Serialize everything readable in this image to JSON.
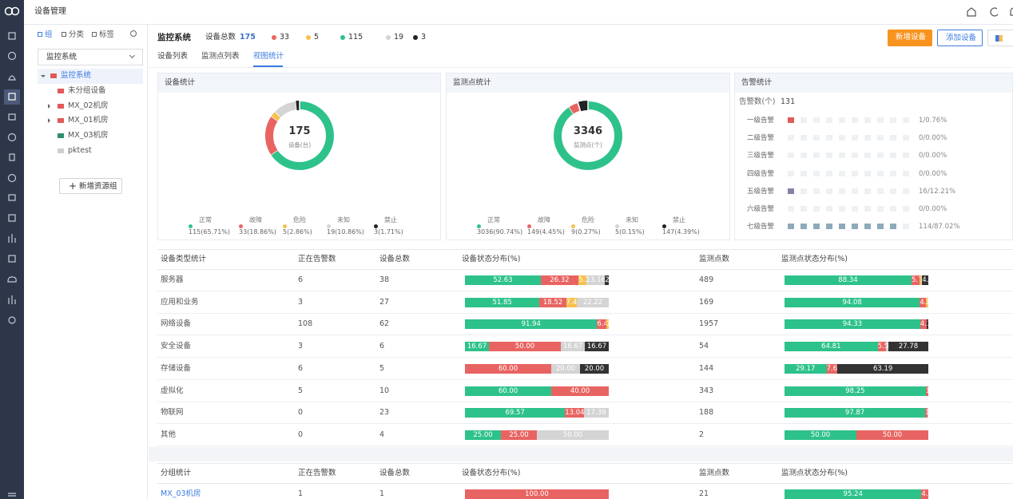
{
  "app": {
    "title": "设备管理"
  },
  "tree": {
    "tabs": [
      "组",
      "分类",
      "标签"
    ],
    "select": "监控系统",
    "nodes": [
      "监控系统",
      "未分组设备",
      "MX_02机房",
      "MX_01机房",
      "MX_03机房",
      "pktest"
    ],
    "node_colors": [
      "#e05a5a",
      "#e05a5a",
      "#e05a5a",
      "#e05a5a",
      "#2e8f6d",
      "#cfcfcf"
    ],
    "button": "新增资源组"
  },
  "header": {
    "title": "监控系统",
    "total_label": "设备总数",
    "total": 175,
    "status_counts": [
      33,
      5,
      115,
      19,
      3
    ],
    "status_colors": [
      "#e86462",
      "#f5c14f",
      "#2ec28b",
      "#d4d4d4",
      "#222222"
    ],
    "buttons": [
      "新增设备",
      "添加设备"
    ]
  },
  "tabs": [
    "设备列表",
    "监测点列表",
    "视图统计"
  ],
  "chart_data": [
    {
      "type": "donut",
      "title": "设备统计",
      "total": 175,
      "total_label": "设备(台)",
      "categories": [
        "正常",
        "故障",
        "危险",
        "未知",
        "禁止"
      ],
      "colors": [
        "#2ec28b",
        "#e86462",
        "#f5c14f",
        "#d4d4d4",
        "#222222"
      ],
      "values": [
        115,
        33,
        5,
        19,
        3
      ],
      "value_labels": [
        "115(65.71%)",
        "33(18.86%)",
        "5(2.86%)",
        "19(10.86%)",
        "3(1.71%)"
      ]
    },
    {
      "type": "donut",
      "title": "监测点统计",
      "total": 3346,
      "total_label": "监测点(个)",
      "categories": [
        "正常",
        "故障",
        "危险",
        "未知",
        "禁止"
      ],
      "colors": [
        "#2ec28b",
        "#e86462",
        "#f5c14f",
        "#d4d4d4",
        "#222222"
      ],
      "values": [
        3036,
        149,
        9,
        5,
        147
      ],
      "value_labels": [
        "3036(90.74%)",
        "149(4.45%)",
        "9(0.27%)",
        "5(0.15%)",
        "147(4.39%)"
      ]
    },
    {
      "type": "blocks",
      "title": "告警统计",
      "total_label": "告警数(个)",
      "total": 131,
      "categories": [
        "一级告警",
        "二级告警",
        "三级告警",
        "四级告警",
        "五级告警",
        "六级告警",
        "七级告警"
      ],
      "colors": [
        "#e05a5a",
        "#f0904a",
        "#f5c14f",
        "#b4cf6b",
        "#8a80a6",
        "#7db3d6",
        "#8eaab8"
      ],
      "values": [
        1,
        0,
        0,
        0,
        16,
        0,
        114
      ],
      "value_labels": [
        "1/0.76%",
        "0/0.00%",
        "0/0.00%",
        "0/0.00%",
        "16/12.21%",
        "0/0.00%",
        "114/87.02%"
      ]
    }
  ],
  "tables": [
    {
      "headers": [
        "设备类型统计",
        "正在告警数",
        "设备总数",
        "设备状态分布(%)",
        "监测点数",
        "监测点状态分布(%)"
      ],
      "rows": [
        {
          "name": "服务器",
          "alarms": 6,
          "devices": 38,
          "device_dist": {
            "values": [
              52.63,
              26.32,
              5.26,
              13.16,
              2.63
            ],
            "colors": [
              "#2ec28b",
              "#e86462",
              "#f5c14f",
              "#d4d4d4",
              "#333333"
            ]
          },
          "points": 489,
          "point_dist": {
            "values": [
              88.34,
              5.73,
              1.02,
              0.61,
              4.29
            ],
            "colors": [
              "#2ec28b",
              "#e86462",
              "#f5c14f",
              "#d4d4d4",
              "#333333"
            ]
          }
        },
        {
          "name": "应用和业务",
          "alarms": 3,
          "devices": 27,
          "device_dist": {
            "values": [
              51.85,
              18.52,
              7.41,
              22.22
            ],
            "colors": [
              "#2ec28b",
              "#e86462",
              "#f5c14f",
              "#d4d4d4"
            ]
          },
          "points": 169,
          "point_dist": {
            "values": [
              94.08,
              4.14,
              1.78
            ],
            "colors": [
              "#2ec28b",
              "#e86462",
              "#f5c14f"
            ]
          }
        },
        {
          "name": "网络设备",
          "alarms": 108,
          "devices": 62,
          "device_dist": {
            "values": [
              91.94,
              6.45,
              1.61
            ],
            "colors": [
              "#2ec28b",
              "#e86462",
              "#f5c14f"
            ]
          },
          "points": 1957,
          "point_dist": {
            "values": [
              94.33,
              4.6,
              0.05,
              1.02
            ],
            "value_labels": [
              "94.33",
              "4.60",
              "0.05",
              "1.02"
            ],
            "colors": [
              "#2ec28b",
              "#e86462",
              "#f5c14f",
              "#333333"
            ]
          }
        },
        {
          "name": "安全设备",
          "alarms": 3,
          "devices": 6,
          "device_dist": {
            "values": [
              16.67,
              50,
              16.67,
              16.67
            ],
            "value_labels": [
              "16.67",
              "50.00",
              "16.67",
              "16.67"
            ],
            "colors": [
              "#2ec28b",
              "#e86462",
              "#d4d4d4",
              "#333333"
            ]
          },
          "points": 54,
          "point_dist": {
            "values": [
              64.81,
              5.56,
              1.85,
              27.78
            ],
            "colors": [
              "#2ec28b",
              "#e86462",
              "#d4d4d4",
              "#333333"
            ]
          }
        },
        {
          "name": "存储设备",
          "alarms": 6,
          "devices": 5,
          "device_dist": {
            "values": [
              60,
              20,
              20
            ],
            "value_labels": [
              "60.00",
              "20.00",
              "20.00"
            ],
            "colors": [
              "#e86462",
              "#d4d4d4",
              "#333333"
            ]
          },
          "points": 144,
          "point_dist": {
            "values": [
              29.17,
              7.64,
              63.19
            ],
            "colors": [
              "#2ec28b",
              "#e86462",
              "#333333"
            ]
          }
        },
        {
          "name": "虚拟化",
          "alarms": 5,
          "devices": 10,
          "device_dist": {
            "values": [
              60,
              40
            ],
            "value_labels": [
              "60.00",
              "40.00"
            ],
            "colors": [
              "#2ec28b",
              "#e86462"
            ]
          },
          "points": 343,
          "point_dist": {
            "values": [
              98.25,
              1.75
            ],
            "colors": [
              "#2ec28b",
              "#e86462"
            ]
          }
        },
        {
          "name": "物联网",
          "alarms": 0,
          "devices": 23,
          "device_dist": {
            "values": [
              69.57,
              13.04,
              17.39
            ],
            "colors": [
              "#2ec28b",
              "#e86462",
              "#d4d4d4"
            ]
          },
          "points": 188,
          "point_dist": {
            "values": [
              97.87,
              1.6,
              0.53
            ],
            "value_labels": [
              "97.87",
              "1.60",
              "0.53"
            ],
            "colors": [
              "#2ec28b",
              "#e86462",
              "#d4d4d4"
            ]
          }
        },
        {
          "name": "其他",
          "alarms": 0,
          "devices": 4,
          "device_dist": {
            "values": [
              25,
              25,
              50
            ],
            "value_labels": [
              "25.00",
              "25.00",
              "50.00"
            ],
            "colors": [
              "#2ec28b",
              "#e86462",
              "#d4d4d4"
            ]
          },
          "points": 2,
          "point_dist": {
            "values": [
              50,
              50
            ],
            "value_labels": [
              "50.00",
              "50.00"
            ],
            "colors": [
              "#2ec28b",
              "#e86462"
            ]
          }
        }
      ]
    },
    {
      "headers": [
        "分组统计",
        "正在告警数",
        "设备总数",
        "设备状态分布(%)",
        "监测点数",
        "监测点状态分布(%)"
      ],
      "rows": [
        {
          "name": "MX_03机房",
          "alarms": 1,
          "devices": 1,
          "device_dist": {
            "values": [
              100
            ],
            "value_labels": [
              "100.00"
            ],
            "colors": [
              "#e86462"
            ]
          },
          "points": 21,
          "point_dist": {
            "values": [
              95.24,
              4.76
            ],
            "colors": [
              "#2ec28b",
              "#e86462"
            ]
          }
        }
      ]
    }
  ]
}
